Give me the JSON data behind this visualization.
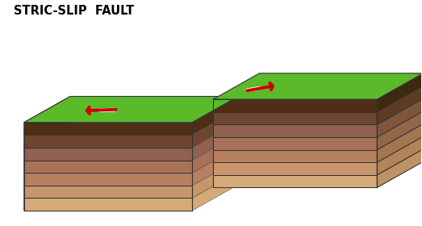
{
  "title": "STRIC-SLIP  FAULT",
  "title_fontsize": 10.5,
  "title_fontweight": "bold",
  "bg_color": "#ffffff",
  "green_top": "#5aba2a",
  "arrow_color": "#cc0000",
  "edge_color": "#333333",
  "layer_colors_front": [
    "#d4aa78",
    "#c8966a",
    "#b88060",
    "#a87258",
    "#906050",
    "#6e4530",
    "#4e2e14"
  ],
  "layer_colors_top_face": [
    "#c89e70",
    "#bc9060",
    "#ac7e54",
    "#9c6e4c",
    "#8a5e44",
    "#68402a",
    "#4a2c12"
  ],
  "layer_colors_right_face": [
    "#be9264",
    "#b28458",
    "#a2764e",
    "#926646",
    "#7e563c",
    "#5e3c24",
    "#3e2810"
  ],
  "fault_stripe_colors": [
    "#d4aa78",
    "#c8966a",
    "#b88060",
    "#a87258",
    "#906050",
    "#6e4530",
    "#4e2e14"
  ]
}
